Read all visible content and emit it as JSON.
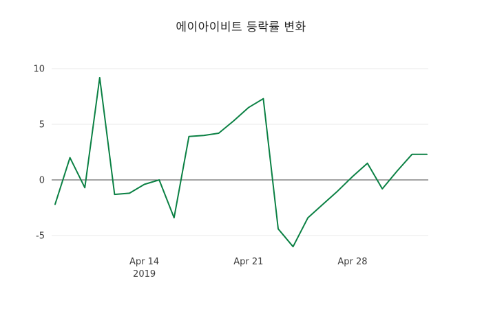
{
  "page": {
    "background": "#ffffff"
  },
  "chart_data": {
    "type": "line",
    "title": "에이아이비트 등락률 변화",
    "x": [
      "2019-04-08",
      "2019-04-09",
      "2019-04-10",
      "2019-04-11",
      "2019-04-12",
      "2019-04-13",
      "2019-04-14",
      "2019-04-15",
      "2019-04-16",
      "2019-04-17",
      "2019-04-18",
      "2019-04-19",
      "2019-04-20",
      "2019-04-21",
      "2019-04-22",
      "2019-04-23",
      "2019-04-24",
      "2019-04-25",
      "2019-04-26",
      "2019-04-27",
      "2019-04-28",
      "2019-04-29",
      "2019-04-30",
      "2019-05-01",
      "2019-05-02",
      "2019-05-03"
    ],
    "values": [
      -2.2,
      2.0,
      -0.7,
      9.2,
      -1.3,
      -1.2,
      -0.4,
      0.0,
      -3.4,
      3.9,
      4.0,
      4.2,
      5.3,
      6.5,
      7.3,
      -4.4,
      -6.0,
      -3.4,
      -2.2,
      -1.0,
      0.3,
      1.5,
      -0.8,
      0.8,
      2.3,
      2.3
    ],
    "xlabel": "",
    "ylabel": "",
    "ylim": [
      -7,
      10.5
    ],
    "yticks": [
      10,
      5,
      0,
      -5
    ],
    "xticks": [
      {
        "label": "Apr 14",
        "sublabel": "2019",
        "index": 6
      },
      {
        "label": "Apr 21",
        "sublabel": "",
        "index": 13
      },
      {
        "label": "Apr 28",
        "sublabel": "",
        "index": 20
      }
    ],
    "grid": "horizontal",
    "legend": "none",
    "line_color": "#0a8043",
    "grid_color": "#e8e8e8",
    "zeroline_color": "#474747",
    "tick_color": "#3b3b3b"
  }
}
